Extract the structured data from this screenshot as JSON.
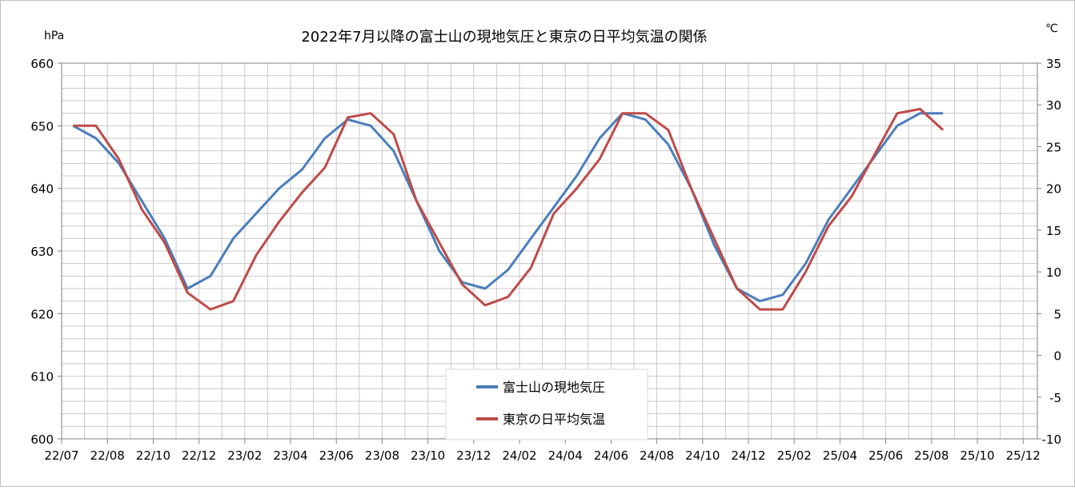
{
  "chart_data": {
    "type": "line",
    "title": "2022年7月以降の富士山の現地気圧と東京の日平均気温の関係",
    "left_unit": "hPa",
    "right_unit": "℃",
    "y_left": {
      "min": 600,
      "max": 660,
      "step": 10,
      "ticks": [
        "600",
        "610",
        "620",
        "630",
        "640",
        "650",
        "660"
      ]
    },
    "y_right": {
      "min": -10,
      "max": 35,
      "step": 5,
      "ticks": [
        "-10",
        "-5",
        "0",
        "5",
        "10",
        "15",
        "20",
        "25",
        "30",
        "35"
      ]
    },
    "x_ticks": [
      "22/07",
      "22/08",
      "22/10",
      "22/12",
      "23/02",
      "23/04",
      "23/06",
      "23/08",
      "23/10",
      "23/12",
      "24/02",
      "24/04",
      "24/06",
      "24/08",
      "24/10",
      "24/12",
      "25/02",
      "25/04",
      "25/06",
      "25/08",
      "25/10",
      "25/12"
    ],
    "grid": true,
    "legend_placement": "bottom-center",
    "series": [
      {
        "name": "富士山の現地気圧",
        "axis": "left",
        "color": "#4a7ebb",
        "x": [
          "22/07",
          "22/08",
          "22/09",
          "22/10",
          "22/11",
          "22/12",
          "23/01",
          "23/02",
          "23/03",
          "23/04",
          "23/05",
          "23/06",
          "23/07",
          "23/08",
          "23/09",
          "23/10",
          "23/11",
          "23/12",
          "24/01",
          "24/02",
          "24/03",
          "24/04",
          "24/05",
          "24/06",
          "24/07",
          "24/08",
          "24/09",
          "24/10",
          "24/11",
          "24/12",
          "25/01",
          "25/02",
          "25/03",
          "25/04",
          "25/05",
          "25/06",
          "25/07",
          "25/08",
          "25/09"
        ],
        "values": [
          650,
          648,
          644,
          638,
          632,
          624,
          626,
          632,
          636,
          640,
          643,
          648,
          651,
          650,
          646,
          638,
          630,
          625,
          624,
          627,
          632,
          637,
          642,
          648,
          652,
          651,
          647,
          640,
          631,
          624,
          622,
          623,
          628,
          635,
          640,
          645,
          650,
          652,
          652
        ]
      },
      {
        "name": "東京の日平均気温",
        "axis": "right",
        "color": "#be4b48",
        "x": [
          "22/07",
          "22/08",
          "22/09",
          "22/10",
          "22/11",
          "22/12",
          "23/01",
          "23/02",
          "23/03",
          "23/04",
          "23/05",
          "23/06",
          "23/07",
          "23/08",
          "23/09",
          "23/10",
          "23/11",
          "23/12",
          "24/01",
          "24/02",
          "24/03",
          "24/04",
          "24/05",
          "24/06",
          "24/07",
          "24/08",
          "24/09",
          "24/10",
          "24/11",
          "24/12",
          "25/01",
          "25/02",
          "25/03",
          "25/04",
          "25/05",
          "25/06",
          "25/07",
          "25/08",
          "25/09"
        ],
        "values": [
          27.5,
          27.5,
          23.5,
          17.5,
          13.5,
          7.5,
          5.5,
          6.5,
          12.0,
          16.0,
          19.5,
          22.5,
          28.5,
          29.0,
          26.5,
          18.5,
          13.5,
          8.5,
          6.0,
          7.0,
          10.5,
          17.0,
          20.0,
          23.5,
          29.0,
          29.0,
          27.0,
          20.0,
          14.0,
          8.0,
          5.5,
          5.5,
          10.0,
          15.5,
          19.0,
          24.0,
          29.0,
          29.5,
          27.0
        ]
      }
    ]
  }
}
